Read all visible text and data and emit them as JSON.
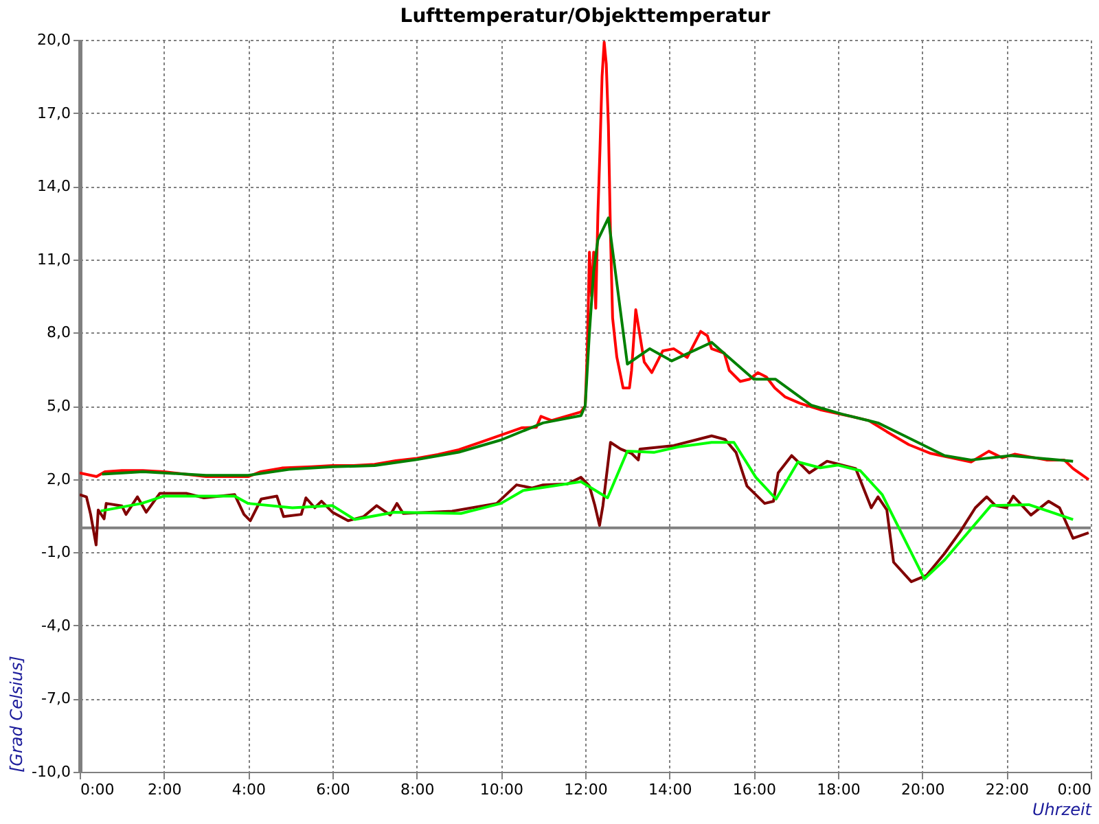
{
  "chart_data": {
    "type": "line",
    "title": "Lufttemperatur/Objekttemperatur",
    "xlabel": "Uhrzeit",
    "ylabel": "[Grad Celsius]",
    "xlim": [
      0,
      24
    ],
    "xticks": [
      {
        "value": 0,
        "label": "0:00"
      },
      {
        "value": 2,
        "label": "2:00"
      },
      {
        "value": 4,
        "label": "4:00"
      },
      {
        "value": 6,
        "label": "6:00"
      },
      {
        "value": 8,
        "label": "8:00"
      },
      {
        "value": 10,
        "label": "10:00"
      },
      {
        "value": 12,
        "label": "12:00"
      },
      {
        "value": 14,
        "label": "14:00"
      },
      {
        "value": 16,
        "label": "16:00"
      },
      {
        "value": 18,
        "label": "18:00"
      },
      {
        "value": 20,
        "label": "20:00"
      },
      {
        "value": 22,
        "label": "22:00"
      },
      {
        "value": 24,
        "label": "0:00"
      }
    ],
    "ylim": [
      -10,
      20
    ],
    "yticks": [
      {
        "value": -10,
        "label": "-10,0"
      },
      {
        "value": -7,
        "label": "-7,0"
      },
      {
        "value": -4,
        "label": "-4,0"
      },
      {
        "value": -1,
        "label": "-1,0"
      },
      {
        "value": 2,
        "label": "2,0"
      },
      {
        "value": 5,
        "label": "5,0"
      },
      {
        "value": 8,
        "label": "8,0"
      },
      {
        "value": 11,
        "label": "11,0"
      },
      {
        "value": 14,
        "label": "14,0"
      },
      {
        "value": 17,
        "label": "17,0"
      },
      {
        "value": 20,
        "label": "20,0"
      }
    ],
    "grid": true,
    "marker": "none",
    "line_style": "solid",
    "ref_lines": [
      {
        "axis": "y",
        "value": 0,
        "label": null,
        "color": "#808080"
      }
    ],
    "series": [
      {
        "color": "#ff0000",
        "x": [
          0,
          0.4,
          0.6,
          1.0,
          1.5,
          2.0,
          2.5,
          3.0,
          3.5,
          4.0,
          4.3,
          4.8,
          5.5,
          6.0,
          6.5,
          7.0,
          7.5,
          8.0,
          8.5,
          9.0,
          9.5,
          10.0,
          10.5,
          10.84,
          10.95,
          11.2,
          11.9,
          12.0,
          12.05,
          12.1,
          12.15,
          12.2,
          12.25,
          12.3,
          12.35,
          12.4,
          12.45,
          12.5,
          12.55,
          12.6,
          12.65,
          12.75,
          12.9,
          13.05,
          13.1,
          13.2,
          13.3,
          13.4,
          13.58,
          13.84,
          14.1,
          14.42,
          14.74,
          14.9,
          15.0,
          15.3,
          15.42,
          15.68,
          15.9,
          16.1,
          16.3,
          16.5,
          16.74,
          17.1,
          17.58,
          18.3,
          18.74,
          19.16,
          19.68,
          20.2,
          21.16,
          21.58,
          21.9,
          22.2,
          22.95,
          23.37,
          23.58,
          23.95
        ],
        "values": [
          2.25,
          2.1,
          2.3,
          2.35,
          2.35,
          2.3,
          2.2,
          2.1,
          2.1,
          2.1,
          2.3,
          2.45,
          2.5,
          2.55,
          2.55,
          2.6,
          2.75,
          2.85,
          3.0,
          3.2,
          3.5,
          3.8,
          4.1,
          4.12,
          4.57,
          4.4,
          4.75,
          5.0,
          7.3,
          11.3,
          9.5,
          11.3,
          9.0,
          12.8,
          15.5,
          18.5,
          19.9,
          19.0,
          16.5,
          12.0,
          8.6,
          7.0,
          5.73,
          5.73,
          6.45,
          8.94,
          7.87,
          6.8,
          6.36,
          7.25,
          7.34,
          6.98,
          8.05,
          7.87,
          7.34,
          7.16,
          6.45,
          6.0,
          6.09,
          6.36,
          6.18,
          5.73,
          5.37,
          5.1,
          4.84,
          4.57,
          4.39,
          3.94,
          3.41,
          3.05,
          2.7,
          3.14,
          2.87,
          3.02,
          2.78,
          2.78,
          2.43,
          1.98
        ]
      },
      {
        "color": "#008000",
        "x": [
          0.53,
          1.5,
          3.0,
          4.0,
          5.0,
          6.0,
          7.0,
          8.0,
          9.0,
          10.0,
          11.0,
          11.9,
          12.0,
          12.1,
          12.2,
          12.3,
          12.55,
          13.0,
          13.53,
          14.05,
          15.0,
          16.0,
          16.52,
          17.37,
          18.1,
          18.95,
          19.58,
          20.53,
          21.16,
          22.1,
          23.58
        ],
        "values": [
          2.2,
          2.3,
          2.15,
          2.15,
          2.4,
          2.5,
          2.55,
          2.8,
          3.1,
          3.6,
          4.3,
          4.6,
          5.0,
          8.0,
          10.5,
          11.8,
          12.7,
          6.71,
          7.34,
          6.84,
          7.6,
          6.09,
          6.09,
          5.02,
          4.66,
          4.3,
          3.77,
          2.96,
          2.78,
          2.96,
          2.73
        ]
      },
      {
        "color": "#800000",
        "x": [
          0,
          0.16,
          0.26,
          0.39,
          0.44,
          0.58,
          0.63,
          1.0,
          1.1,
          1.37,
          1.58,
          1.9,
          2.53,
          2.95,
          3.68,
          3.9,
          4.05,
          4.31,
          4.68,
          4.84,
          5.26,
          5.37,
          5.58,
          5.74,
          6.0,
          6.37,
          6.74,
          7.05,
          7.37,
          7.53,
          7.68,
          8.84,
          9.9,
          10.37,
          10.74,
          11.0,
          11.58,
          11.9,
          12.1,
          12.23,
          12.34,
          12.42,
          12.6,
          12.84,
          13.1,
          13.26,
          13.3,
          14.1,
          15.0,
          15.32,
          15.58,
          15.84,
          16.26,
          16.47,
          16.58,
          16.9,
          17.11,
          17.32,
          17.74,
          18.42,
          18.79,
          18.95,
          19.16,
          19.32,
          19.74,
          20.1,
          20.53,
          20.9,
          21.26,
          21.53,
          21.74,
          22.0,
          22.16,
          22.58,
          23.0,
          23.26,
          23.58,
          23.95
        ],
        "values": [
          1.36,
          1.27,
          0.55,
          -0.7,
          0.73,
          0.37,
          1.0,
          0.9,
          0.55,
          1.27,
          0.64,
          1.41,
          1.41,
          1.23,
          1.36,
          0.55,
          0.29,
          1.18,
          1.3,
          0.46,
          0.55,
          1.23,
          0.82,
          1.09,
          0.64,
          0.29,
          0.46,
          0.91,
          0.52,
          1.0,
          0.59,
          0.68,
          1.0,
          1.76,
          1.63,
          1.76,
          1.8,
          2.07,
          1.71,
          0.91,
          0.1,
          0.91,
          3.5,
          3.23,
          3.05,
          2.78,
          3.23,
          3.37,
          3.77,
          3.62,
          3.09,
          1.71,
          1.0,
          1.09,
          2.25,
          2.96,
          2.61,
          2.25,
          2.73,
          2.43,
          0.82,
          1.27,
          0.73,
          -1.41,
          -2.21,
          -1.95,
          -1.05,
          -0.16,
          0.82,
          1.27,
          0.91,
          0.82,
          1.3,
          0.52,
          1.09,
          0.82,
          -0.43,
          -0.2
        ]
      },
      {
        "color": "#00ff00",
        "x": [
          0.5,
          1.47,
          2.0,
          3.68,
          4.0,
          5.05,
          6.0,
          6.53,
          7.47,
          9.05,
          10.0,
          10.53,
          11.9,
          12.53,
          13.0,
          13.63,
          14.21,
          15.0,
          15.53,
          16.05,
          16.53,
          17.05,
          17.58,
          18.0,
          18.53,
          19.05,
          20.05,
          20.53,
          21.63,
          22.53,
          23.58
        ],
        "values": [
          0.69,
          1.0,
          1.3,
          1.3,
          1.0,
          0.82,
          0.91,
          0.34,
          0.64,
          0.59,
          1.0,
          1.53,
          1.89,
          1.23,
          3.14,
          3.09,
          3.32,
          3.5,
          3.5,
          2.07,
          1.18,
          2.7,
          2.46,
          2.57,
          2.34,
          1.36,
          -2.09,
          -1.32,
          0.91,
          0.95,
          0.34
        ]
      }
    ]
  }
}
